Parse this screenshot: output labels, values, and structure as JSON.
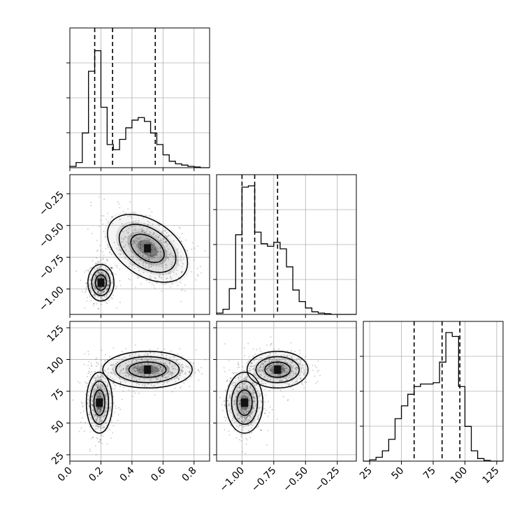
{
  "chart_data": [
    {
      "panel": "hist-x",
      "type": "bar",
      "xlim": [
        0.0,
        0.9
      ],
      "ylim": [
        0,
        1.0
      ],
      "quantiles": [
        0.16,
        0.275,
        0.55
      ],
      "bin_edges": [
        0.0,
        0.04,
        0.08,
        0.12,
        0.16,
        0.2,
        0.24,
        0.28,
        0.32,
        0.36,
        0.4,
        0.44,
        0.48,
        0.52,
        0.56,
        0.6,
        0.64,
        0.68,
        0.72,
        0.76,
        0.8,
        0.84,
        0.9
      ],
      "counts": [
        0.01,
        0.04,
        0.27,
        0.75,
        0.91,
        0.47,
        0.18,
        0.14,
        0.22,
        0.31,
        0.37,
        0.39,
        0.36,
        0.27,
        0.18,
        0.1,
        0.05,
        0.03,
        0.02,
        0.01,
        0.005,
        0.0
      ]
    },
    {
      "panel": "scatter-x-y",
      "type": "scatter",
      "xlim": [
        0.0,
        0.9
      ],
      "ylim": [
        -1.2,
        -0.1
      ],
      "clusters": [
        {
          "center": [
            0.2,
            -0.95
          ],
          "sd": [
            0.035,
            0.06
          ],
          "rot": 0.0,
          "n": 450
        },
        {
          "center": [
            0.5,
            -0.68
          ],
          "sd": [
            0.12,
            0.09
          ],
          "rot": -0.6,
          "n": 550
        }
      ],
      "density_peaks": [
        [
          0.2,
          -0.95
        ],
        [
          0.5,
          -0.68
        ]
      ]
    },
    {
      "panel": "hist-y",
      "type": "bar",
      "xlim": [
        -1.2,
        -0.1
      ],
      "ylim": [
        0,
        1.0
      ],
      "quantiles": [
        -1.0,
        -0.9,
        -0.72
      ],
      "bin_edges": [
        -1.2,
        -1.15,
        -1.1,
        -1.05,
        -1.0,
        -0.95,
        -0.9,
        -0.85,
        -0.8,
        -0.75,
        -0.7,
        -0.65,
        -0.6,
        -0.55,
        -0.5,
        -0.45,
        -0.4,
        -0.35,
        -0.3,
        -0.25,
        -0.2,
        -0.15,
        -0.1
      ],
      "counts": [
        0.01,
        0.04,
        0.2,
        0.62,
        0.99,
        1.0,
        0.64,
        0.55,
        0.53,
        0.56,
        0.51,
        0.37,
        0.19,
        0.1,
        0.05,
        0.02,
        0.01,
        0.005,
        0.0,
        0.0,
        0.0,
        0.0
      ]
    },
    {
      "panel": "scatter-x-z",
      "type": "scatter",
      "xlim": [
        0.0,
        0.9
      ],
      "ylim": [
        20,
        130
      ],
      "clusters": [
        {
          "center": [
            0.19,
            66
          ],
          "sd": [
            0.035,
            10
          ],
          "rot": 0.0,
          "n": 500
        },
        {
          "center": [
            0.5,
            92
          ],
          "sd": [
            0.12,
            6
          ],
          "rot": 0.0,
          "n": 500
        }
      ],
      "density_peaks": [
        [
          0.19,
          66
        ],
        [
          0.5,
          92
        ]
      ]
    },
    {
      "panel": "scatter-y-z",
      "type": "scatter",
      "xlim": [
        -1.2,
        -0.1
      ],
      "ylim": [
        20,
        130
      ],
      "clusters": [
        {
          "center": [
            -0.98,
            66
          ],
          "sd": [
            0.06,
            10
          ],
          "rot": 0.0,
          "n": 500
        },
        {
          "center": [
            -0.72,
            92
          ],
          "sd": [
            0.1,
            6
          ],
          "rot": 0.0,
          "n": 500
        }
      ],
      "density_peaks": [
        [
          -0.98,
          66
        ],
        [
          -0.72,
          92
        ]
      ]
    },
    {
      "panel": "hist-z",
      "type": "bar",
      "xlim": [
        20,
        130
      ],
      "ylim": [
        0,
        1.0
      ],
      "quantiles": [
        60,
        82,
        96
      ],
      "bin_edges": [
        20,
        25,
        30,
        35,
        40,
        45,
        50,
        55,
        60,
        65,
        70,
        75,
        80,
        85,
        90,
        95,
        100,
        105,
        110,
        115,
        120,
        125,
        130
      ],
      "counts": [
        0.0,
        0.01,
        0.03,
        0.08,
        0.17,
        0.33,
        0.43,
        0.52,
        0.58,
        0.6,
        0.6,
        0.61,
        0.77,
        1.0,
        0.97,
        0.58,
        0.27,
        0.08,
        0.02,
        0.005,
        0.0,
        0.0
      ]
    }
  ],
  "ticks": {
    "x": [
      "0.0",
      "0.2",
      "0.4",
      "0.6",
      "0.8"
    ],
    "x_values": [
      0.0,
      0.2,
      0.4,
      0.6,
      0.8
    ],
    "y": [
      "−1.00",
      "−0.75",
      "−0.50",
      "−0.25"
    ],
    "y_values": [
      -1.0,
      -0.75,
      -0.5,
      -0.25
    ],
    "z": [
      "25",
      "50",
      "75",
      "100",
      "125"
    ],
    "z_values": [
      25,
      50,
      75,
      100,
      125
    ]
  }
}
